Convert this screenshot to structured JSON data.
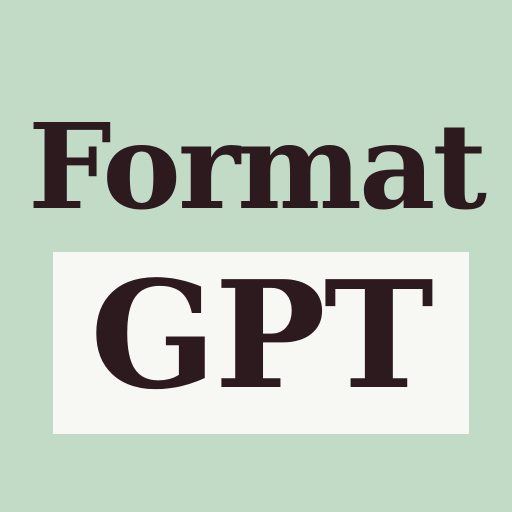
{
  "logo": {
    "line1": "Format",
    "line2": "GPT"
  },
  "colors": {
    "background": "#c2dbc6",
    "box": "#f7f8f4",
    "text": "#2c1a1f"
  }
}
